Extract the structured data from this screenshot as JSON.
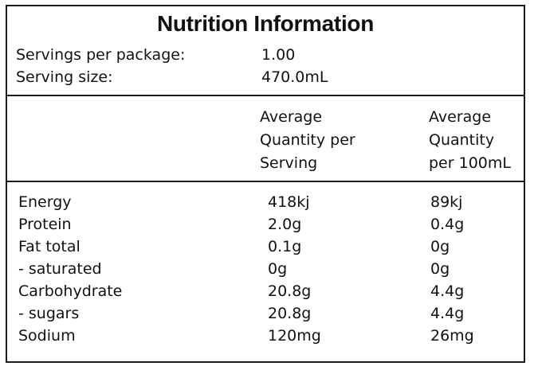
{
  "title": "Nutrition Information",
  "servings_per_package": {
    "label": "Servings per package:",
    "value": "1.00"
  },
  "serving_size": {
    "label": "Serving size:",
    "value": "470.0mL"
  },
  "columns": {
    "per_serving": [
      "Average",
      "Quantity per",
      "Serving"
    ],
    "per_100ml": [
      "Average",
      "Quantity",
      "per 100mL"
    ]
  },
  "rows": [
    {
      "name": "Energy",
      "per_serving": "418kj",
      "per_100ml": "89kj"
    },
    {
      "name": "Protein",
      "per_serving": "2.0g",
      "per_100ml": "0.4g"
    },
    {
      "name": "Fat total",
      "per_serving": "0.1g",
      "per_100ml": "0g"
    },
    {
      "name": "- saturated",
      "per_serving": "0g",
      "per_100ml": "0g"
    },
    {
      "name": "Carbohydrate",
      "per_serving": "20.8g",
      "per_100ml": "4.4g"
    },
    {
      "name": "- sugars",
      "per_serving": "20.8g",
      "per_100ml": "4.4g"
    },
    {
      "name": "Sodium",
      "per_serving": "120mg",
      "per_100ml": "26mg"
    }
  ]
}
